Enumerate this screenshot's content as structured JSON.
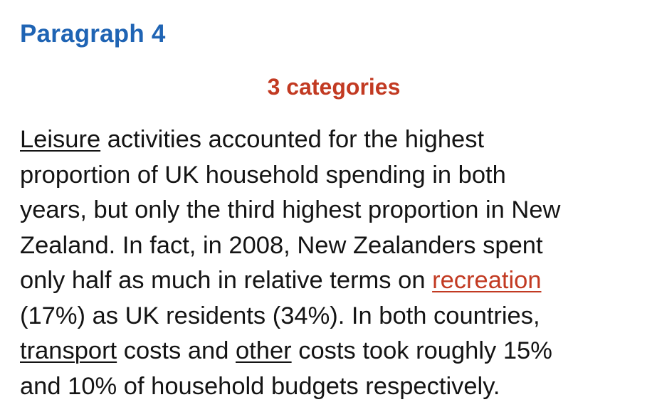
{
  "heading": "Paragraph 4",
  "subheading": "3 categories",
  "paragraph": {
    "lines": [
      [
        {
          "text": "Leisure",
          "style": "underline"
        },
        {
          "text": " activities accounted for the highest",
          "style": "plain"
        }
      ],
      [
        {
          "text": "proportion of UK household spending in both",
          "style": "plain"
        }
      ],
      [
        {
          "text": "years, but only the third highest proportion in New",
          "style": "plain"
        }
      ],
      [
        {
          "text": "Zealand. In fact, in 2008, New Zealanders spent",
          "style": "plain"
        }
      ],
      [
        {
          "text": "only half as much in relative terms on ",
          "style": "plain"
        },
        {
          "text": "recreation",
          "style": "underline-red"
        }
      ],
      [
        {
          "text": "(17%) as UK residents (34%). In both countries,",
          "style": "plain"
        }
      ],
      [
        {
          "text": "transport",
          "style": "underline"
        },
        {
          "text": " costs and ",
          "style": "plain"
        },
        {
          "text": "other",
          "style": "underline"
        },
        {
          "text": " costs took roughly 15%",
          "style": "plain"
        }
      ],
      [
        {
          "text": "and 10% of household budgets respectively.",
          "style": "plain"
        }
      ]
    ]
  },
  "colors": {
    "heading": "#1f64b4",
    "subheading": "#c23a22",
    "body_text": "#141414",
    "highlight": "#c23a22"
  }
}
